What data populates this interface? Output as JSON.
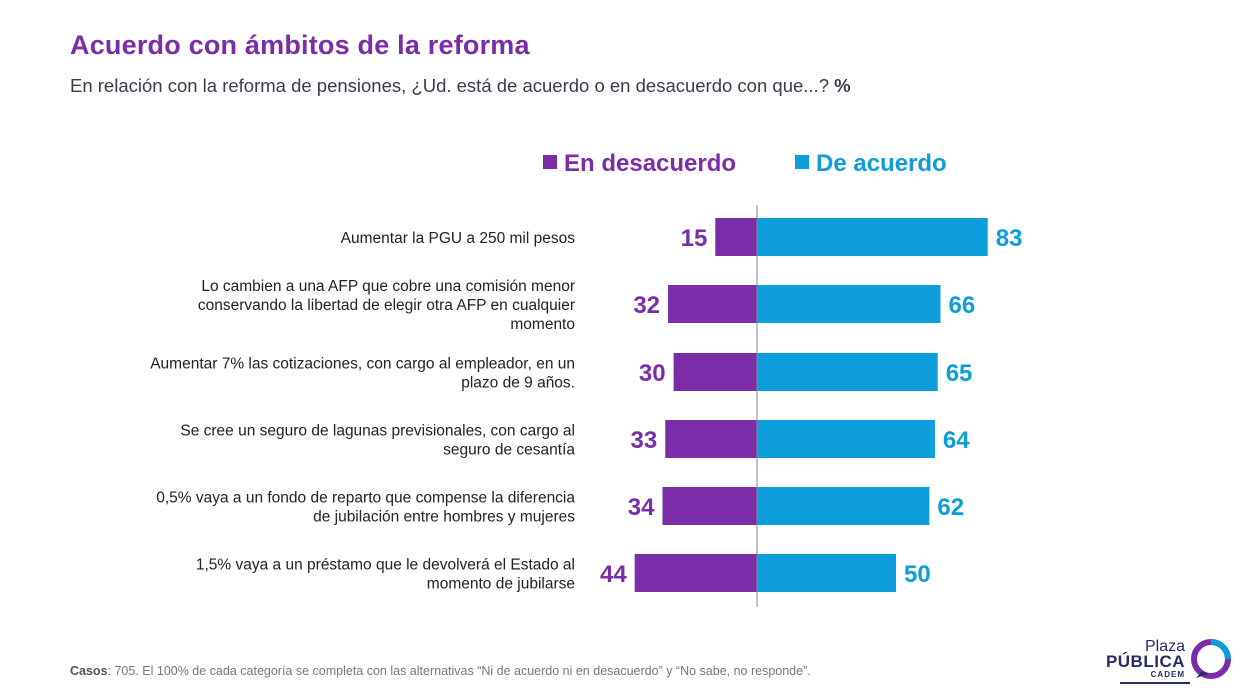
{
  "header": {
    "title": "Acuerdo con ámbitos de la reforma",
    "subtitle": "En relación con la reforma de pensiones, ¿Ud. está de acuerdo o en desacuerdo con que...?",
    "subtitle_unit": "%"
  },
  "colors": {
    "disagree": "#7B2CA8",
    "agree": "#0D9DDB",
    "axis": "#888888"
  },
  "chart_data": {
    "type": "bar",
    "orientation": "horizontal-diverging",
    "categories": [
      "Aumentar la PGU a 250 mil pesos",
      "Lo cambien a una AFP que cobre una comisión menor conservando la libertad de elegir otra AFP en cualquier momento",
      "Aumentar 7% las cotizaciones, con cargo al empleador, en un plazo de 9 años.",
      "Se cree un seguro de lagunas previsionales, con cargo al seguro de cesantía",
      "0,5% vaya a un fondo de reparto que compense la diferencia de jubilación entre hombres y mujeres",
      "1,5% vaya a un préstamo que le devolverá el Estado al momento de jubilarse"
    ],
    "category_lines": [
      [
        "Aumentar la PGU a 250 mil pesos"
      ],
      [
        "Lo cambien a una AFP que cobre una comisión menor",
        "conservando la libertad de elegir otra AFP en cualquier",
        "momento"
      ],
      [
        "Aumentar 7% las cotizaciones, con cargo al empleador, en un",
        "plazo de 9 años."
      ],
      [
        "Se cree un seguro de lagunas previsionales, con cargo al",
        "seguro de cesantía"
      ],
      [
        "0,5% vaya a un fondo de reparto que compense la diferencia",
        "de jubilación entre hombres y mujeres"
      ],
      [
        "1,5% vaya a un préstamo que le devolverá el Estado al",
        "momento de jubilarse"
      ]
    ],
    "series": [
      {
        "name": "En desacuerdo",
        "values": [
          15,
          32,
          30,
          33,
          34,
          44
        ]
      },
      {
        "name": "De acuerdo",
        "values": [
          83,
          66,
          65,
          64,
          62,
          50
        ]
      }
    ],
    "legend_position": "top"
  },
  "footer": {
    "label": "Casos",
    "text": ": 705. El 100% de cada categoría se completa con las alternativas “Ni de acuerdo ni en desacuerdo” y “No sabe, no responde”."
  },
  "logo": {
    "line1": "Plaza",
    "line2": "PÚBLICA",
    "line3": "CADEM"
  }
}
